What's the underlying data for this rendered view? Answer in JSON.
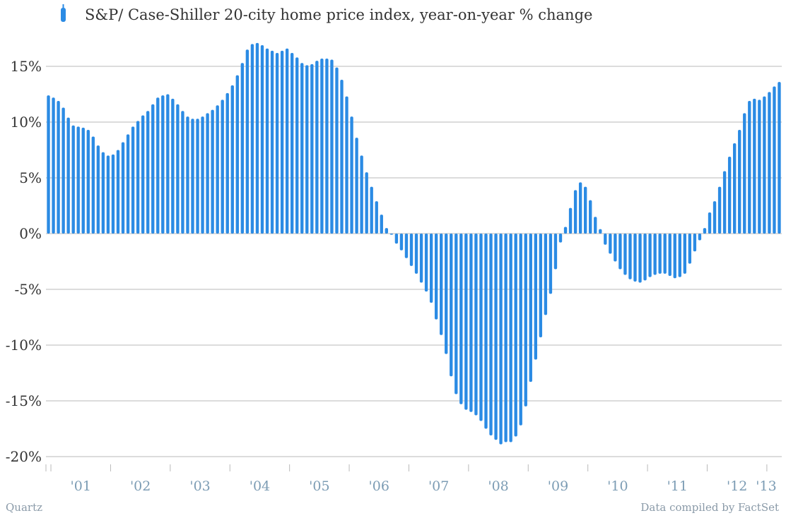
{
  "legend": {
    "label": "S&P/ Case-Shiller 20-city home price index, year-on-year % change"
  },
  "footer": {
    "source_left": "Quartz",
    "source_right": "Data compiled by FactSet"
  },
  "colors": {
    "bar": "#2b8be4",
    "grid": "#b9b9b9",
    "axis_text": "#333333",
    "x_text": "#7c9cb4"
  },
  "chart_data": {
    "type": "bar",
    "title": "",
    "xlabel": "",
    "ylabel": "",
    "ylim": [
      -20,
      17.5
    ],
    "yticks": [
      -20,
      -15,
      -10,
      -5,
      0,
      5,
      10,
      15
    ],
    "ytick_labels": [
      "-20%",
      "-15%",
      "-10%",
      "-5%",
      "0%",
      "5%",
      "10%",
      "15%"
    ],
    "xtick_labels": [
      "'01",
      "'02",
      "'03",
      "'04",
      "'05",
      "'06",
      "'07",
      "'08",
      "'09",
      "'10",
      "'11",
      "'12",
      "'13"
    ],
    "grid": true,
    "legend_position": "top-left",
    "series": [
      {
        "name": "S&P/ Case-Shiller 20-city home price index, year-on-year % change",
        "start": "2000-12",
        "frequency": "monthly",
        "values": [
          12.4,
          12.2,
          11.9,
          11.3,
          10.4,
          9.7,
          9.6,
          9.5,
          9.3,
          8.7,
          7.9,
          7.3,
          7.0,
          7.1,
          7.5,
          8.2,
          8.9,
          9.6,
          10.1,
          10.6,
          11.0,
          11.6,
          12.2,
          12.4,
          12.5,
          12.1,
          11.6,
          11.0,
          10.5,
          10.3,
          10.3,
          10.5,
          10.8,
          11.1,
          11.5,
          12.0,
          12.6,
          13.3,
          14.2,
          15.3,
          16.5,
          17.0,
          17.1,
          16.9,
          16.6,
          16.4,
          16.2,
          16.4,
          16.6,
          16.2,
          15.8,
          15.3,
          15.1,
          15.2,
          15.5,
          15.7,
          15.7,
          15.6,
          14.9,
          13.8,
          12.3,
          10.5,
          8.6,
          7.0,
          5.5,
          4.2,
          2.9,
          1.7,
          0.5,
          -0.1,
          -0.9,
          -1.5,
          -2.2,
          -2.9,
          -3.6,
          -4.4,
          -5.2,
          -6.2,
          -7.7,
          -9.1,
          -10.8,
          -12.8,
          -14.4,
          -15.3,
          -15.8,
          -16.0,
          -16.3,
          -16.8,
          -17.5,
          -18.1,
          -18.5,
          -18.9,
          -18.7,
          -18.7,
          -18.2,
          -17.2,
          -15.5,
          -13.3,
          -11.3,
          -9.3,
          -7.3,
          -5.4,
          -3.2,
          -0.8,
          0.6,
          2.3,
          3.9,
          4.6,
          4.2,
          3.0,
          1.5,
          0.4,
          -1.0,
          -1.8,
          -2.5,
          -3.2,
          -3.7,
          -4.1,
          -4.3,
          -4.4,
          -4.2,
          -3.9,
          -3.7,
          -3.6,
          -3.6,
          -3.8,
          -4.0,
          -3.9,
          -3.6,
          -2.7,
          -1.6,
          -0.6,
          0.5,
          1.9,
          2.9,
          4.2,
          5.6,
          6.9,
          8.1,
          9.3,
          10.8,
          11.9,
          12.1,
          12.0,
          12.3,
          12.7,
          13.2,
          13.6
        ]
      }
    ]
  }
}
